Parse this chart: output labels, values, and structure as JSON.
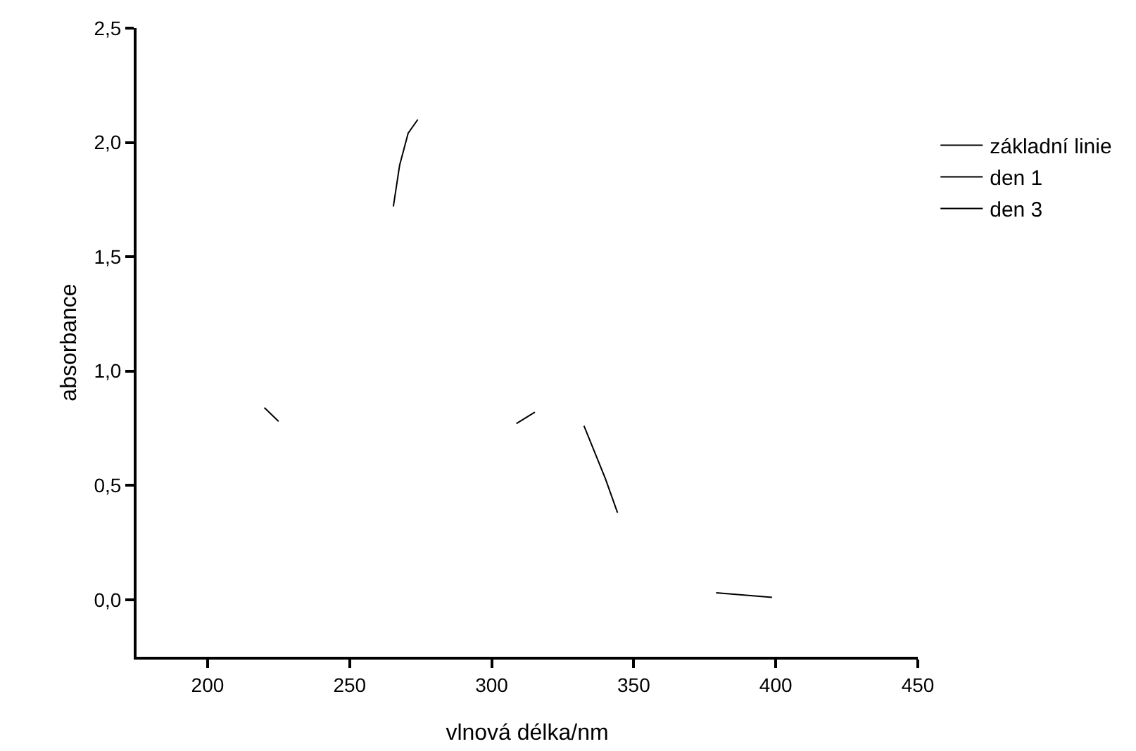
{
  "chart_data": {
    "type": "line",
    "xlabel": "vlnová délka/nm",
    "ylabel": "absorbance",
    "xlim": [
      175,
      450
    ],
    "xticks": [
      200,
      250,
      300,
      350,
      400,
      450
    ],
    "ylim": [
      -0.25,
      2.5
    ],
    "yticks": [
      {
        "value": 0,
        "label": "0,0"
      },
      {
        "value": 0.5,
        "label": "0,5"
      },
      {
        "value": 1,
        "label": "1,0"
      },
      {
        "value": 1.5,
        "label": "1,5"
      },
      {
        "value": 2,
        "label": "2,0"
      },
      {
        "value": 2.5,
        "label": "2,5"
      }
    ],
    "x": [
      220,
      225,
      230,
      265.4,
      267.6,
      270.6,
      274,
      290,
      308.7,
      315.2,
      325,
      332.5,
      340,
      344.3,
      360,
      379,
      398.7
    ],
    "series": [
      {
        "name": "základní linie",
        "color": "#000000",
        "values": [
          0.84,
          0.78,
          null,
          1.72,
          1.9,
          2.04,
          2.1,
          null,
          null,
          null,
          null,
          null,
          null,
          null,
          null,
          null,
          null
        ]
      },
      {
        "name": "den 1",
        "color": "#000000",
        "values": [
          null,
          null,
          null,
          null,
          null,
          null,
          null,
          null,
          0.77,
          0.82,
          null,
          null,
          null,
          null,
          null,
          null,
          null
        ]
      },
      {
        "name": "den 3",
        "color": "#000000",
        "values": [
          null,
          null,
          null,
          null,
          null,
          null,
          null,
          null,
          null,
          null,
          null,
          0.76,
          0.53,
          0.38,
          null,
          0.03,
          0.01
        ]
      }
    ],
    "grid": false,
    "legend": "top right",
    "marker": "none",
    "line_style": "solid"
  }
}
